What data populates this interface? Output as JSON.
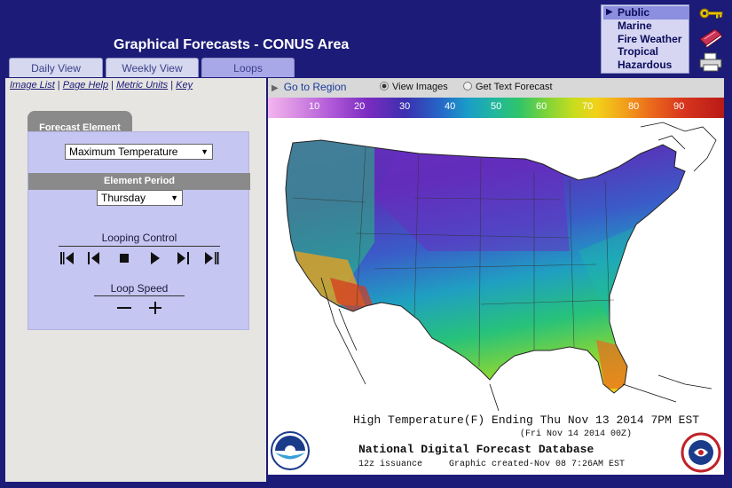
{
  "header": {
    "title": "Graphical Forecasts - CONUS Area",
    "tabs": [
      {
        "label": "Daily View"
      },
      {
        "label": "Weekly View"
      },
      {
        "label": "Loops"
      }
    ]
  },
  "site_menu": {
    "items": [
      "Public",
      "Marine",
      "Fire Weather",
      "Tropical",
      "Hazardous"
    ],
    "selected": "Public"
  },
  "side_icons": [
    "key-icon",
    "book-icon",
    "printer-icon"
  ],
  "links": [
    "Image List",
    "Page Help",
    "Metric Units",
    "Key"
  ],
  "forecast_element": {
    "title": "Forecast Element",
    "selected": "Maximum Temperature"
  },
  "element_period": {
    "title": "Element Period",
    "selected": "Thursday"
  },
  "looping_control": {
    "title": "Looping Control",
    "buttons": [
      "first-frame",
      "previous-frame",
      "stop",
      "play",
      "next-frame",
      "last-frame"
    ]
  },
  "loop_speed": {
    "title": "Loop Speed",
    "buttons": [
      "slower",
      "faster"
    ]
  },
  "toolbar": {
    "go_region": "Go to Region",
    "view_images": "View Images",
    "get_text": "Get Text Forecast",
    "selected_view": "View Images"
  },
  "colorbar": {
    "ticks": [
      "10",
      "20",
      "30",
      "40",
      "50",
      "60",
      "70",
      "80",
      "90"
    ],
    "colors": [
      "#f3b5ef",
      "#b058d8",
      "#3c2fb0",
      "#1a9ec8",
      "#2fc46b",
      "#c8dc1e",
      "#f2a21a",
      "#d8361e",
      "#b81a16"
    ]
  },
  "map": {
    "caption_line1": "High Temperature(F) Ending Thu Nov 13 2014  7PM EST",
    "caption_line2": "(Fri Nov 14 2014 00Z)",
    "database": "National Digital Forecast Database",
    "issuance": "12z issuance",
    "created": "Graphic created-Nov 08  7:26AM EST"
  },
  "colors": {
    "header_bg": "#1c1b78",
    "panel_bg": "#c6c6f2",
    "tab_bg": "#d5d8ee"
  }
}
